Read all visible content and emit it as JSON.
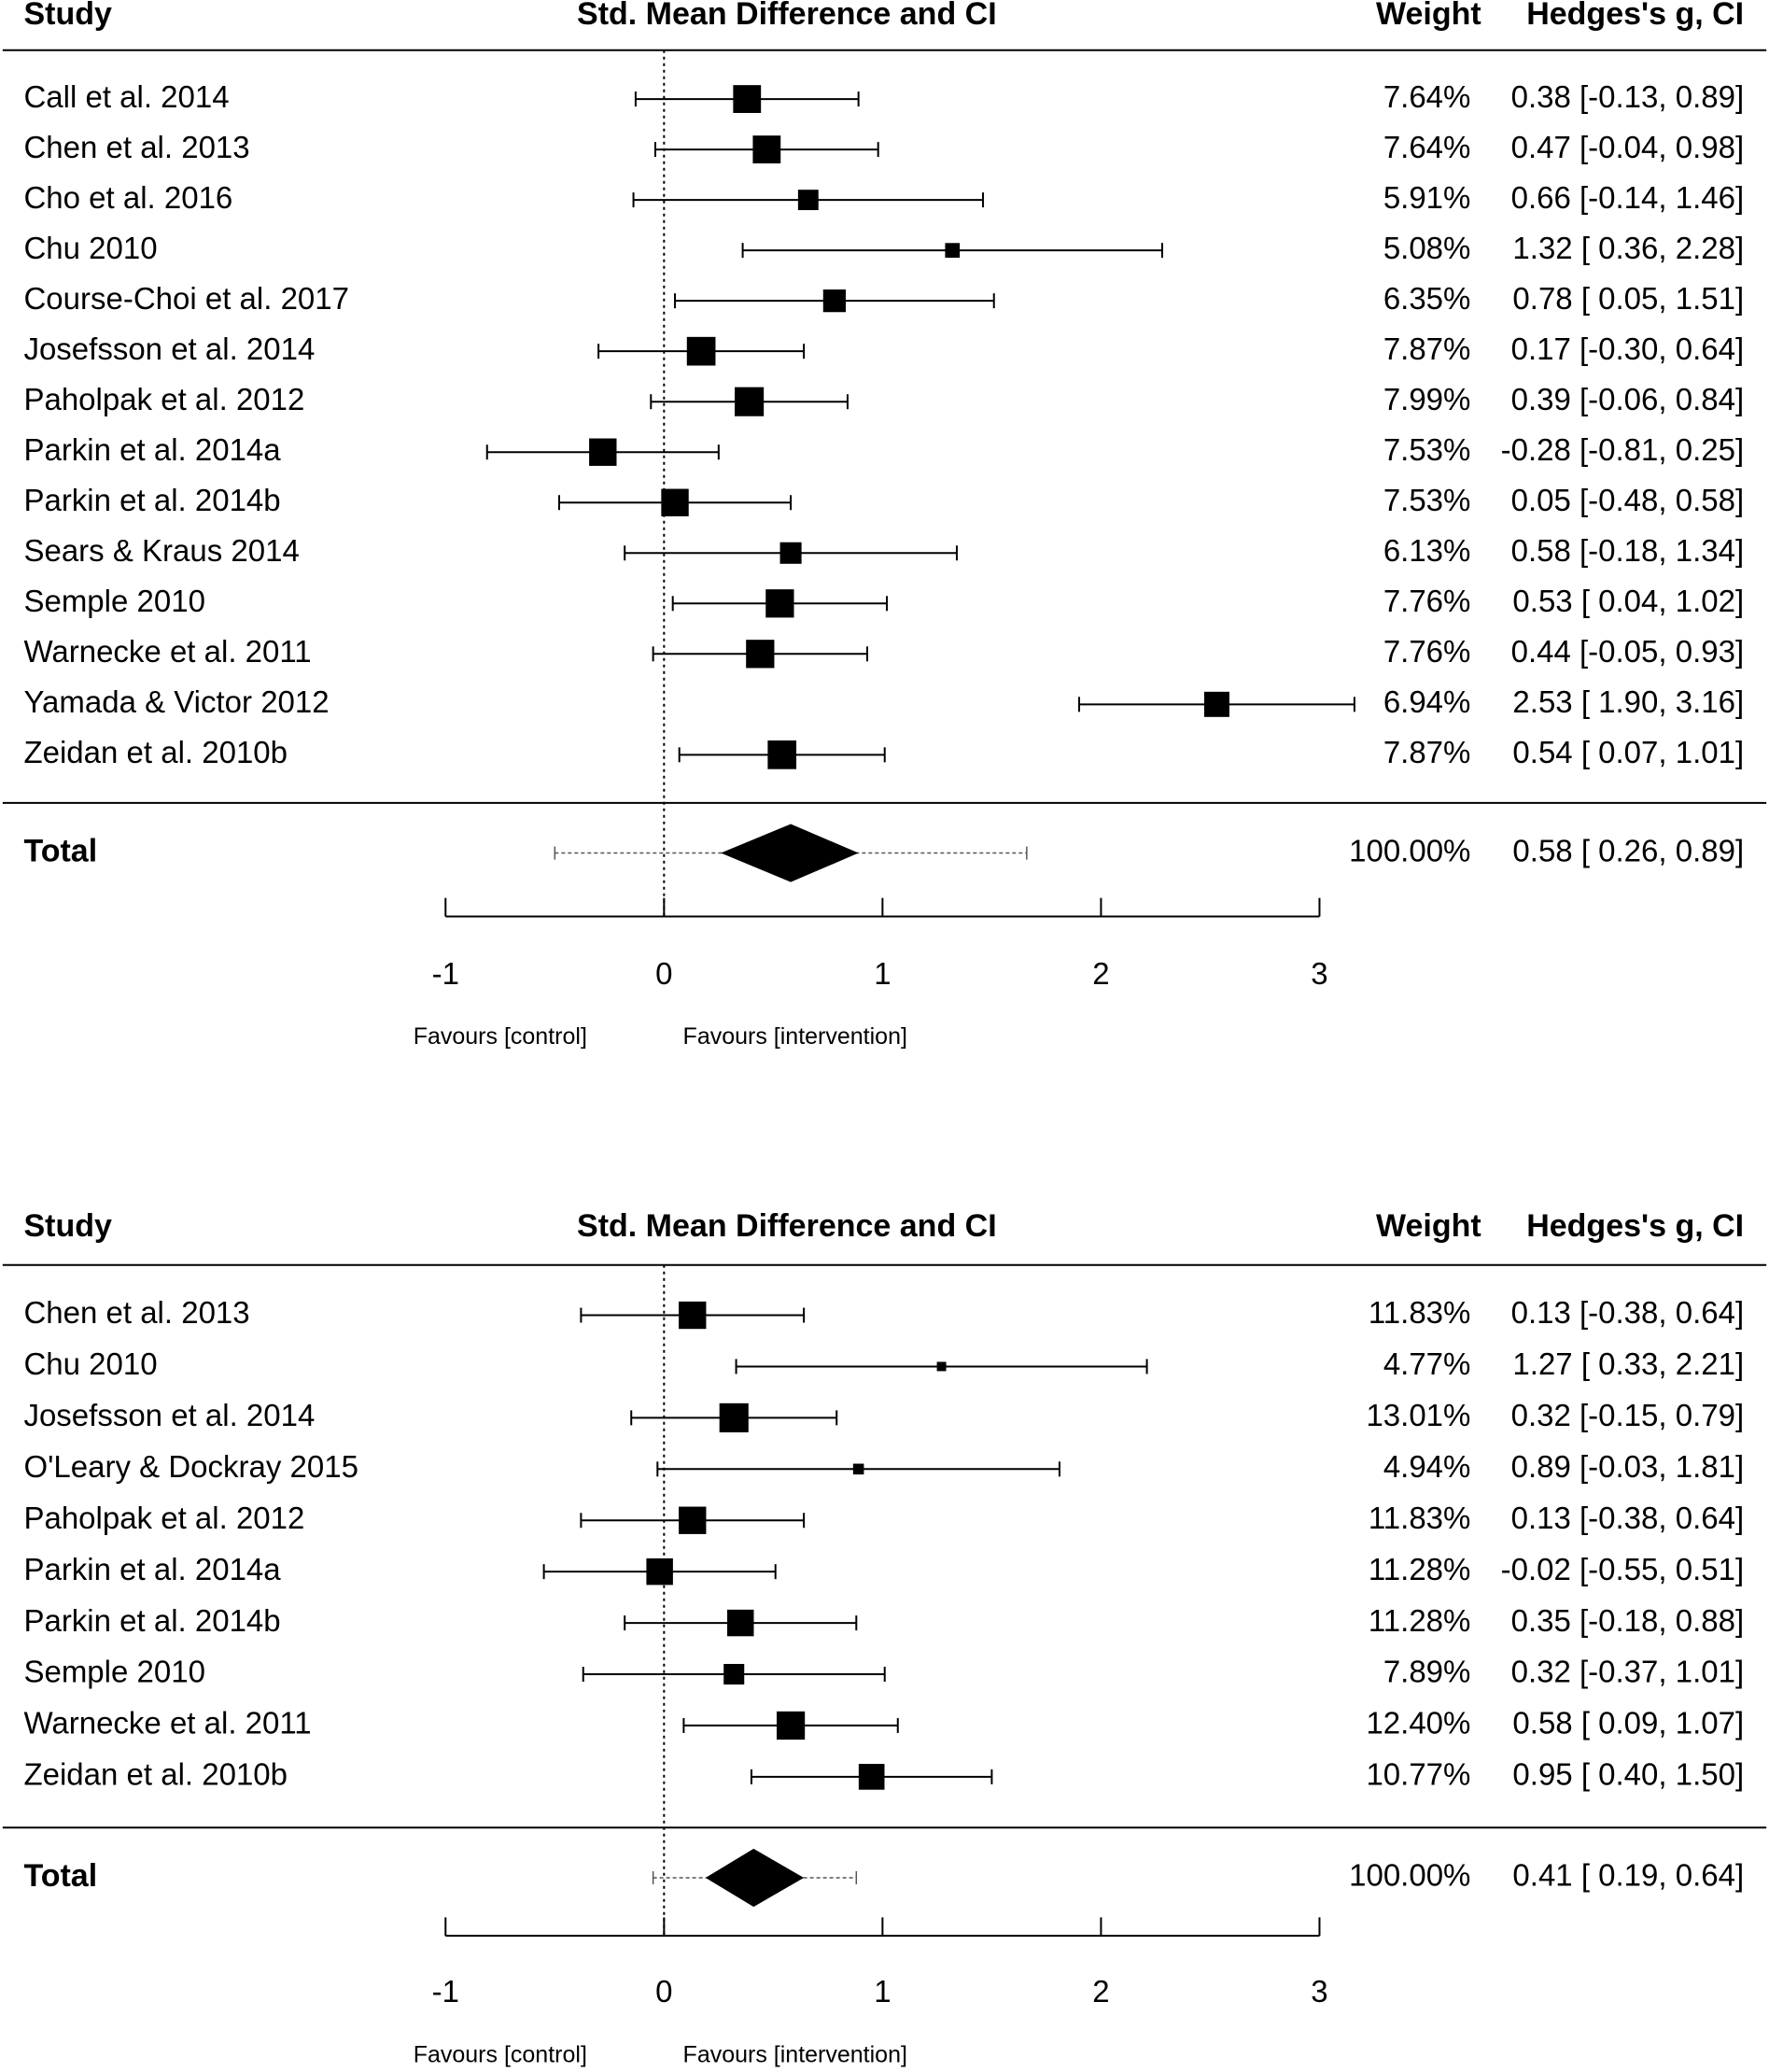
{
  "chart_data": [
    {
      "type": "forest",
      "header": {
        "study": "Study",
        "effect": "Std. Mean Difference and CI",
        "weight": "Weight",
        "estimate": "Hedges's g, CI"
      },
      "studies": [
        {
          "name": "Call et al. 2014",
          "g": 0.38,
          "lo": -0.13,
          "hi": 0.89,
          "weight": 7.64,
          "weight_label": "7.64%",
          "ci_label": "0.38 [-0.13, 0.89]"
        },
        {
          "name": "Chen et al. 2013",
          "g": 0.47,
          "lo": -0.04,
          "hi": 0.98,
          "weight": 7.64,
          "weight_label": "7.64%",
          "ci_label": "0.47 [-0.04, 0.98]"
        },
        {
          "name": "Cho et al. 2016",
          "g": 0.66,
          "lo": -0.14,
          "hi": 1.46,
          "weight": 5.91,
          "weight_label": "5.91%",
          "ci_label": "0.66 [-0.14, 1.46]"
        },
        {
          "name": "Chu 2010",
          "g": 1.32,
          "lo": 0.36,
          "hi": 2.28,
          "weight": 5.08,
          "weight_label": "5.08%",
          "ci_label": "1.32 [ 0.36, 2.28]"
        },
        {
          "name": "Course-Choi et al. 2017",
          "g": 0.78,
          "lo": 0.05,
          "hi": 1.51,
          "weight": 6.35,
          "weight_label": "6.35%",
          "ci_label": "0.78 [ 0.05, 1.51]"
        },
        {
          "name": "Josefsson et al. 2014",
          "g": 0.17,
          "lo": -0.3,
          "hi": 0.64,
          "weight": 7.87,
          "weight_label": "7.87%",
          "ci_label": "0.17 [-0.30, 0.64]"
        },
        {
          "name": "Paholpak et al. 2012",
          "g": 0.39,
          "lo": -0.06,
          "hi": 0.84,
          "weight": 7.99,
          "weight_label": "7.99%",
          "ci_label": "0.39 [-0.06, 0.84]"
        },
        {
          "name": "Parkin et al. 2014a",
          "g": -0.28,
          "lo": -0.81,
          "hi": 0.25,
          "weight": 7.53,
          "weight_label": "7.53%",
          "ci_label": "-0.28 [-0.81, 0.25]"
        },
        {
          "name": "Parkin et al. 2014b",
          "g": 0.05,
          "lo": -0.48,
          "hi": 0.58,
          "weight": 7.53,
          "weight_label": "7.53%",
          "ci_label": "0.05 [-0.48, 0.58]"
        },
        {
          "name": "Sears & Kraus 2014",
          "g": 0.58,
          "lo": -0.18,
          "hi": 1.34,
          "weight": 6.13,
          "weight_label": "6.13%",
          "ci_label": "0.58 [-0.18, 1.34]"
        },
        {
          "name": "Semple 2010",
          "g": 0.53,
          "lo": 0.04,
          "hi": 1.02,
          "weight": 7.76,
          "weight_label": "7.76%",
          "ci_label": "0.53 [ 0.04, 1.02]"
        },
        {
          "name": "Warnecke et al. 2011",
          "g": 0.44,
          "lo": -0.05,
          "hi": 0.93,
          "weight": 7.76,
          "weight_label": "7.76%",
          "ci_label": "0.44 [-0.05, 0.93]"
        },
        {
          "name": "Yamada & Victor 2012",
          "g": 2.53,
          "lo": 1.9,
          "hi": 3.16,
          "weight": 6.94,
          "weight_label": "6.94%",
          "ci_label": "2.53 [ 1.90, 3.16]"
        },
        {
          "name": "Zeidan et al. 2010b",
          "g": 0.54,
          "lo": 0.07,
          "hi": 1.01,
          "weight": 7.87,
          "weight_label": "7.87%",
          "ci_label": "0.54 [ 0.07, 1.01]"
        }
      ],
      "total": {
        "name": "Total",
        "g": 0.58,
        "lo": 0.26,
        "hi": 0.89,
        "pi_lo": -0.5,
        "pi_hi": 1.66,
        "weight_label": "100.00%",
        "ci_label": "0.58 [ 0.26, 0.89]"
      },
      "xlim": [
        -1,
        3
      ],
      "ticks": [
        "-1",
        "0",
        "1",
        "2",
        "3"
      ],
      "favours_left": "Favours [control]",
      "favours_right": "Favours [intervention]"
    },
    {
      "type": "forest",
      "header": {
        "study": "Study",
        "effect": "Std. Mean Difference and CI",
        "weight": "Weight",
        "estimate": "Hedges's g, CI"
      },
      "studies": [
        {
          "name": "Chen et al. 2013",
          "g": 0.13,
          "lo": -0.38,
          "hi": 0.64,
          "weight": 11.83,
          "weight_label": "11.83%",
          "ci_label": "0.13 [-0.38, 0.64]"
        },
        {
          "name": "Chu 2010",
          "g": 1.27,
          "lo": 0.33,
          "hi": 2.21,
          "weight": 4.77,
          "weight_label": "4.77%",
          "ci_label": "1.27 [ 0.33, 2.21]"
        },
        {
          "name": "Josefsson et al. 2014",
          "g": 0.32,
          "lo": -0.15,
          "hi": 0.79,
          "weight": 13.01,
          "weight_label": "13.01%",
          "ci_label": "0.32 [-0.15, 0.79]"
        },
        {
          "name": "O'Leary & Dockray 2015",
          "g": 0.89,
          "lo": -0.03,
          "hi": 1.81,
          "weight": 4.94,
          "weight_label": "4.94%",
          "ci_label": "0.89 [-0.03, 1.81]"
        },
        {
          "name": "Paholpak et al. 2012",
          "g": 0.13,
          "lo": -0.38,
          "hi": 0.64,
          "weight": 11.83,
          "weight_label": "11.83%",
          "ci_label": "0.13 [-0.38, 0.64]"
        },
        {
          "name": "Parkin et al. 2014a",
          "g": -0.02,
          "lo": -0.55,
          "hi": 0.51,
          "weight": 11.28,
          "weight_label": "11.28%",
          "ci_label": "-0.02 [-0.55, 0.51]"
        },
        {
          "name": "Parkin et al. 2014b",
          "g": 0.35,
          "lo": -0.18,
          "hi": 0.88,
          "weight": 11.28,
          "weight_label": "11.28%",
          "ci_label": "0.35 [-0.18, 0.88]"
        },
        {
          "name": "Semple 2010",
          "g": 0.32,
          "lo": -0.37,
          "hi": 1.01,
          "weight": 7.89,
          "weight_label": "7.89%",
          "ci_label": "0.32 [-0.37, 1.01]"
        },
        {
          "name": "Warnecke et al. 2011",
          "g": 0.58,
          "lo": 0.09,
          "hi": 1.07,
          "weight": 12.4,
          "weight_label": "12.40%",
          "ci_label": "0.58 [ 0.09, 1.07]"
        },
        {
          "name": "Zeidan et al. 2010b",
          "g": 0.95,
          "lo": 0.4,
          "hi": 1.5,
          "weight": 10.77,
          "weight_label": "10.77%",
          "ci_label": "0.95 [ 0.40, 1.50]"
        }
      ],
      "total": {
        "name": "Total",
        "g": 0.41,
        "lo": 0.19,
        "hi": 0.64,
        "pi_lo": -0.05,
        "pi_hi": 0.88,
        "weight_label": "100.00%",
        "ci_label": "0.41 [ 0.19, 0.64]"
      },
      "xlim": [
        -1,
        3
      ],
      "ticks": [
        "-1",
        "0",
        "1",
        "2",
        "3"
      ],
      "favours_left": "Favours [control]",
      "favours_right": "Favours [intervention]"
    }
  ]
}
